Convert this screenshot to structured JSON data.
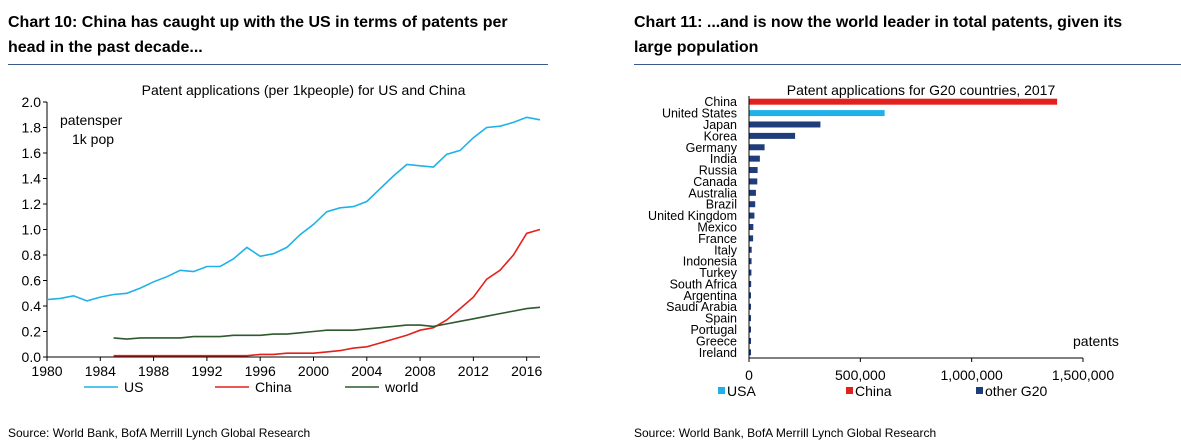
{
  "left": {
    "heading": "Chart 10: China has caught up with the US in terms of patents per head in the past decade...",
    "source": "Source: World Bank, BofA Merrill Lynch Global Research"
  },
  "right": {
    "heading": "Chart 11: ...and is now the world leader in total patents, given its large population",
    "source": "Source: World Bank, BofA Merrill Lynch Global Research"
  },
  "chart_data": [
    {
      "type": "line",
      "title": "Patent applications (per 1kpeople) for US and China",
      "annotation_lines": [
        "patensper",
        "1k pop"
      ],
      "xlabel": "",
      "ylabel": "",
      "xlim": [
        1980,
        2017
      ],
      "ylim": [
        0,
        2.0
      ],
      "x_ticks": [
        1980,
        1984,
        1988,
        1992,
        1996,
        2000,
        2004,
        2008,
        2012,
        2016
      ],
      "y_ticks": [
        "0.0",
        "0.2",
        "0.4",
        "0.6",
        "0.8",
        "1.0",
        "1.2",
        "1.4",
        "1.6",
        "1.8",
        "2.0"
      ],
      "grid": false,
      "legend_position": "bottom",
      "series": [
        {
          "name": "US",
          "color": "#1fb2e8",
          "x": [
            1980,
            1981,
            1982,
            1983,
            1984,
            1985,
            1986,
            1987,
            1988,
            1989,
            1990,
            1991,
            1992,
            1993,
            1994,
            1995,
            1996,
            1997,
            1998,
            1999,
            2000,
            2001,
            2002,
            2003,
            2004,
            2005,
            2006,
            2007,
            2008,
            2009,
            2010,
            2011,
            2012,
            2013,
            2014,
            2015,
            2016,
            2017
          ],
          "values": [
            0.45,
            0.46,
            0.48,
            0.44,
            0.47,
            0.49,
            0.5,
            0.54,
            0.59,
            0.63,
            0.68,
            0.67,
            0.71,
            0.71,
            0.77,
            0.86,
            0.79,
            0.81,
            0.86,
            0.96,
            1.04,
            1.14,
            1.17,
            1.18,
            1.22,
            1.32,
            1.42,
            1.51,
            1.5,
            1.49,
            1.59,
            1.62,
            1.72,
            1.8,
            1.81,
            1.84,
            1.88,
            1.86
          ]
        },
        {
          "name": "China",
          "color": "#e3211c",
          "x": [
            1985,
            1986,
            1987,
            1988,
            1989,
            1990,
            1991,
            1992,
            1993,
            1994,
            1995,
            1996,
            1997,
            1998,
            1999,
            2000,
            2001,
            2002,
            2003,
            2004,
            2005,
            2006,
            2007,
            2008,
            2009,
            2010,
            2011,
            2012,
            2013,
            2014,
            2015,
            2016,
            2017
          ],
          "values": [
            0.01,
            0.01,
            0.01,
            0.01,
            0.01,
            0.01,
            0.01,
            0.01,
            0.01,
            0.01,
            0.01,
            0.02,
            0.02,
            0.03,
            0.03,
            0.03,
            0.04,
            0.05,
            0.07,
            0.08,
            0.11,
            0.14,
            0.17,
            0.21,
            0.23,
            0.29,
            0.38,
            0.47,
            0.61,
            0.68,
            0.8,
            0.97,
            1.0
          ]
        },
        {
          "name": "world",
          "color": "#2f5a2e",
          "x": [
            1985,
            1986,
            1987,
            1988,
            1989,
            1990,
            1991,
            1992,
            1993,
            1994,
            1995,
            1996,
            1997,
            1998,
            1999,
            2000,
            2001,
            2002,
            2003,
            2004,
            2005,
            2006,
            2007,
            2008,
            2009,
            2010,
            2011,
            2012,
            2013,
            2014,
            2015,
            2016,
            2017
          ],
          "values": [
            0.15,
            0.14,
            0.15,
            0.15,
            0.15,
            0.15,
            0.16,
            0.16,
            0.16,
            0.17,
            0.17,
            0.17,
            0.18,
            0.18,
            0.19,
            0.2,
            0.21,
            0.21,
            0.21,
            0.22,
            0.23,
            0.24,
            0.25,
            0.25,
            0.24,
            0.26,
            0.28,
            0.3,
            0.32,
            0.34,
            0.36,
            0.38,
            0.39
          ]
        }
      ]
    },
    {
      "type": "bar",
      "orientation": "horizontal",
      "title": "Patent applications for G20 countries, 2017",
      "xlabel": "patents",
      "ylabel": "",
      "xlim": [
        0,
        1500000
      ],
      "x_ticks": [
        "0",
        "500,000",
        "1,000,000",
        "1,500,000"
      ],
      "grid": false,
      "legend_position": "bottom",
      "legend": [
        {
          "name": "USA",
          "color": "#1fb2e8"
        },
        {
          "name": "China",
          "color": "#e3211c"
        },
        {
          "name": "other G20",
          "color": "#1f3d7a"
        }
      ],
      "categories": [
        "China",
        "United States",
        "Japan",
        "Korea",
        "Germany",
        "India",
        "Russia",
        "Canada",
        "Australia",
        "Brazil",
        "United Kingdom",
        "Mexico",
        "France",
        "Italy",
        "Indonesia",
        "Turkey",
        "South Africa",
        "Argentina",
        "Saudi Arabia",
        "Spain",
        "Portugal",
        "Greece",
        "Ireland"
      ],
      "values": [
        1381594,
        606956,
        318481,
        204775,
        67712,
        46582,
        36454,
        35022,
        28906,
        25658,
        22059,
        17184,
        16222,
        9820,
        9303,
        8555,
        7500,
        4200,
        3000,
        1600,
        800,
        600,
        300
      ],
      "groups": [
        "China",
        "USA",
        "other G20",
        "other G20",
        "other G20",
        "other G20",
        "other G20",
        "other G20",
        "other G20",
        "other G20",
        "other G20",
        "other G20",
        "other G20",
        "other G20",
        "other G20",
        "other G20",
        "other G20",
        "other G20",
        "other G20",
        "other G20",
        "other G20",
        "other G20",
        "other G20"
      ]
    }
  ]
}
